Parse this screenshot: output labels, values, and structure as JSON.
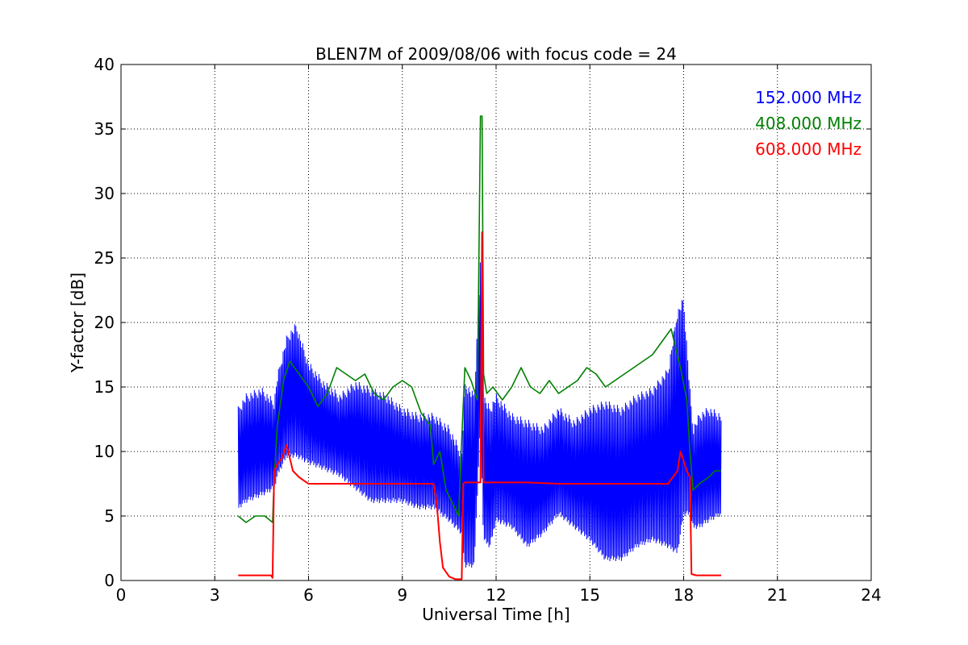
{
  "chart_data": {
    "type": "line",
    "title": "BLEN7M of 2009/08/06 with focus code = 24",
    "xlabel": "Universal Time [h]",
    "ylabel": "Y-factor [dB]",
    "xlim": [
      0,
      24
    ],
    "ylim": [
      0,
      40
    ],
    "xticks": [
      0,
      3,
      6,
      9,
      12,
      15,
      18,
      21,
      24
    ],
    "yticks": [
      0,
      5,
      10,
      15,
      20,
      25,
      30,
      35,
      40
    ],
    "grid": true,
    "legend_position": "top-right",
    "series": [
      {
        "name": "152.000 MHz",
        "color": "#0000ff",
        "envelope": {
          "x": [
            3.75,
            4.0,
            4.5,
            4.9,
            5.0,
            5.3,
            5.6,
            6.0,
            6.5,
            7.0,
            7.5,
            8.0,
            8.5,
            9.0,
            9.5,
            10.0,
            10.5,
            10.9,
            11.0,
            11.3,
            11.5,
            11.6,
            11.8,
            12.0,
            12.5,
            13.0,
            13.5,
            14.0,
            14.5,
            15.0,
            15.5,
            16.0,
            16.5,
            17.0,
            17.5,
            17.8,
            18.0,
            18.2,
            18.3,
            18.5,
            18.8,
            19.2
          ],
          "high": [
            13.5,
            14.5,
            15,
            14,
            16,
            19,
            20,
            17,
            15.5,
            14.5,
            15.5,
            15,
            14.5,
            13.5,
            13,
            13,
            12,
            10,
            15.5,
            14.5,
            25,
            14.5,
            13.5,
            14.5,
            13,
            12.5,
            12,
            13.5,
            12.5,
            13.5,
            14,
            13.5,
            14.5,
            15,
            16.5,
            21,
            22,
            15,
            12,
            13,
            13.5,
            13
          ],
          "low": [
            5.5,
            6,
            6.5,
            7,
            8,
            9.5,
            9.5,
            9,
            8.5,
            8,
            7,
            6,
            6,
            6,
            5.5,
            5.5,
            4.5,
            3.5,
            1,
            1,
            12,
            3,
            2.5,
            4.5,
            4,
            2.5,
            3.5,
            5,
            4,
            3,
            1.5,
            1.5,
            2.5,
            3,
            2.5,
            2,
            5,
            5,
            4,
            4,
            4.5,
            5
          ]
        }
      },
      {
        "name": "408.000 MHz",
        "color": "#008000",
        "line": {
          "x": [
            3.75,
            4.0,
            4.3,
            4.6,
            4.85,
            4.9,
            5.0,
            5.2,
            5.4,
            5.7,
            6.0,
            6.3,
            6.6,
            6.9,
            7.2,
            7.5,
            7.8,
            8.1,
            8.4,
            8.7,
            9.0,
            9.3,
            9.6,
            9.9,
            10.0,
            10.2,
            10.4,
            10.6,
            10.8,
            10.9,
            11.0,
            11.2,
            11.4,
            11.5,
            11.55,
            11.6,
            11.7,
            11.9,
            12.2,
            12.5,
            12.8,
            13.1,
            13.4,
            13.7,
            14.0,
            14.3,
            14.6,
            14.9,
            15.2,
            15.5,
            15.8,
            16.1,
            16.4,
            16.7,
            17.0,
            17.3,
            17.6,
            17.9,
            18.1,
            18.2,
            18.3,
            18.5,
            18.8,
            19.0,
            19.2
          ],
          "y": [
            5,
            4.5,
            5,
            5,
            4.5,
            8,
            12,
            15.5,
            17,
            16,
            15,
            13.5,
            14.5,
            16.5,
            16,
            15.5,
            16,
            14.5,
            14,
            15,
            15.5,
            15,
            13,
            12,
            9,
            10,
            7,
            6,
            5,
            11,
            16.5,
            15.5,
            14,
            36,
            36,
            16,
            14.5,
            15,
            14,
            15,
            16.5,
            15,
            14.5,
            15.5,
            14.5,
            15,
            15.5,
            16.5,
            16,
            15,
            15.5,
            16,
            16.5,
            17,
            17.5,
            18.5,
            19.5,
            16.5,
            14,
            10,
            7,
            7.5,
            8,
            8.5,
            8.5
          ]
        }
      },
      {
        "name": "608.000 MHz",
        "color": "#ff0000",
        "line": {
          "x": [
            3.75,
            4.0,
            4.5,
            4.8,
            4.85,
            4.9,
            5.0,
            5.15,
            5.3,
            5.5,
            5.7,
            6.0,
            6.5,
            7.0,
            7.5,
            8.0,
            8.5,
            9.0,
            9.5,
            9.8,
            10.0,
            10.1,
            10.2,
            10.3,
            10.5,
            10.7,
            10.9,
            10.95,
            11.0,
            11.3,
            11.5,
            11.55,
            11.6,
            11.8,
            12.0,
            13.0,
            14.0,
            15.0,
            16.0,
            17.0,
            17.5,
            17.8,
            17.9,
            18.1,
            18.2,
            18.25,
            18.4,
            18.8,
            19.2
          ],
          "y": [
            0.4,
            0.4,
            0.4,
            0.4,
            0.2,
            8.5,
            9,
            9.5,
            10.5,
            8.5,
            8,
            7.5,
            7.5,
            7.5,
            7.5,
            7.5,
            7.5,
            7.5,
            7.5,
            7.5,
            7.5,
            6,
            3,
            1,
            0.3,
            0.1,
            0.1,
            7.5,
            7.6,
            7.6,
            7.6,
            27,
            7.6,
            7.6,
            7.6,
            7.6,
            7.5,
            7.5,
            7.5,
            7.5,
            7.5,
            8.5,
            10,
            8.5,
            8,
            0.5,
            0.4,
            0.4,
            0.4
          ]
        }
      }
    ]
  }
}
